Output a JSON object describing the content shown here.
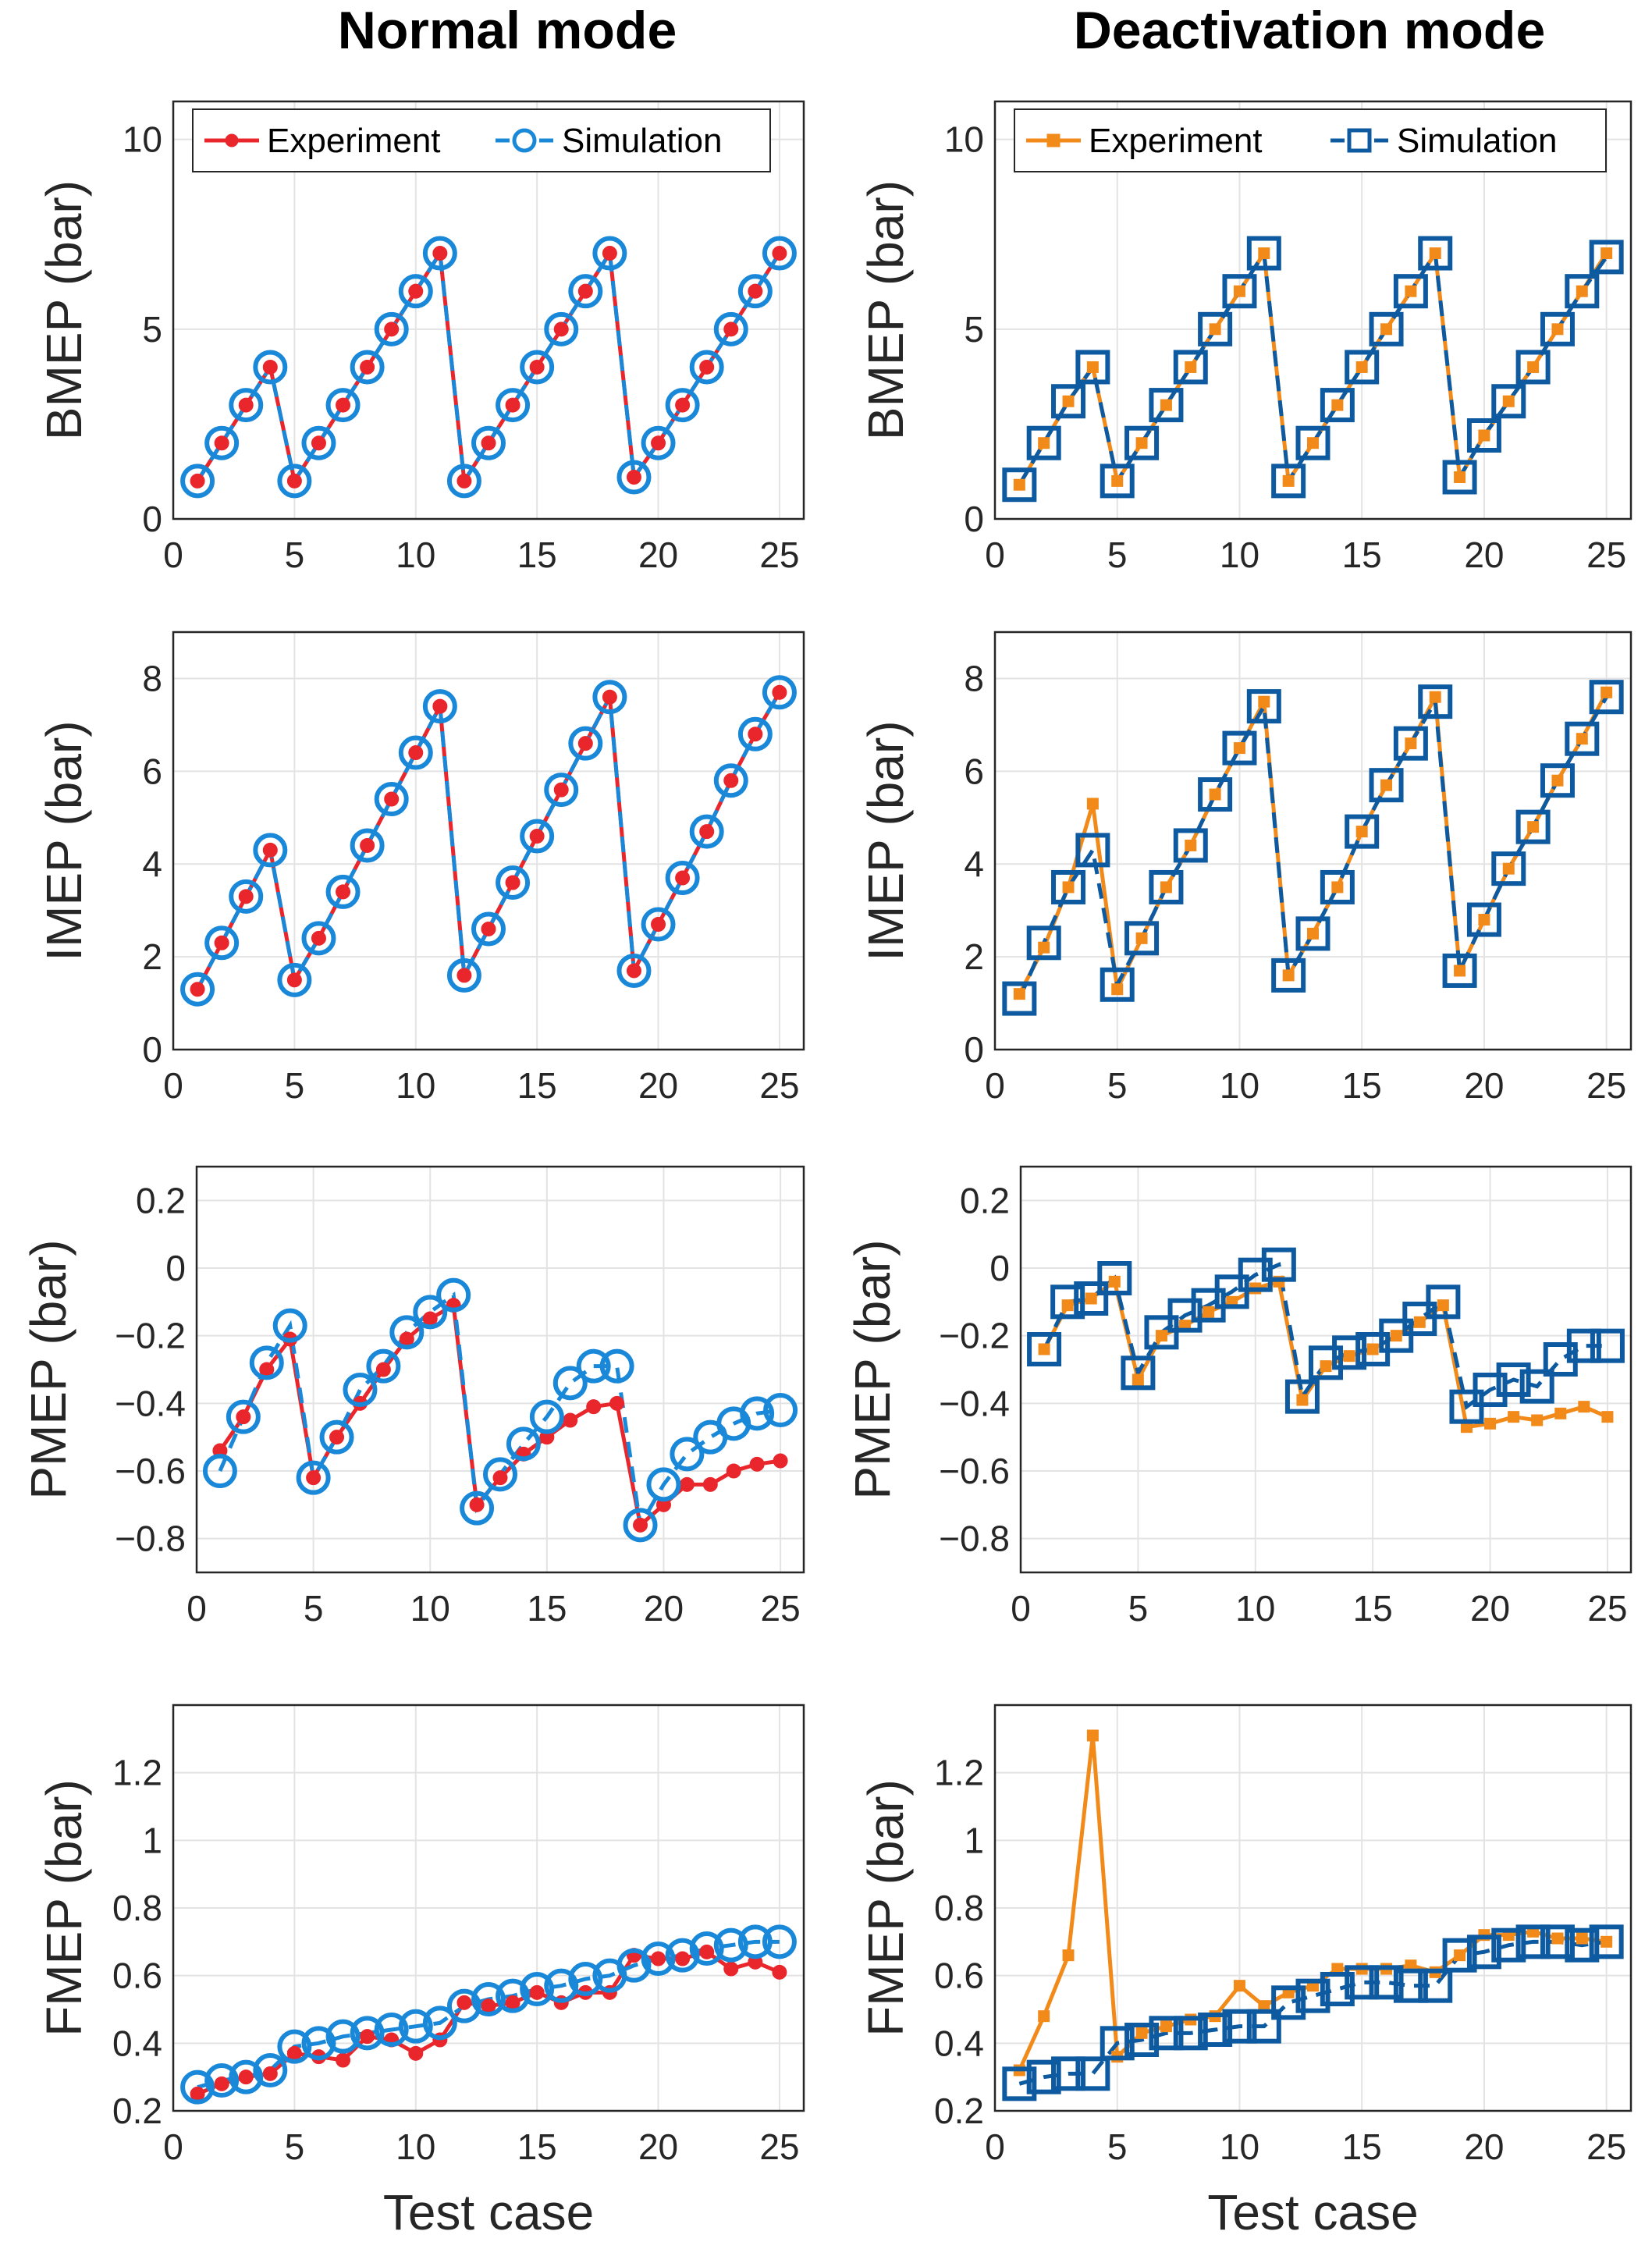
{
  "titles": {
    "left": "Normal mode",
    "right": "Deactivation mode"
  },
  "colors": {
    "exp_normal": "#e8262b",
    "exp_deact": "#f28a1a",
    "sim_normal": "#1a88d8",
    "sim_deact": "#0d5aa0",
    "grid": "#e3e3e3",
    "axis": "#262626"
  },
  "legend": {
    "experiment": "Experiment",
    "simulation": "Simulation"
  },
  "chart_data": [
    {
      "type": "line",
      "panel": "normal-bmep",
      "title": "Normal mode",
      "xlabel": "",
      "ylabel": "BMEP (bar)",
      "xlim": [
        0,
        26
      ],
      "ylim": [
        0,
        11
      ],
      "xticks": [
        0,
        5,
        10,
        15,
        20,
        25
      ],
      "yticks": [
        0,
        5,
        10
      ],
      "ytick_labels": [
        "0",
        "5",
        "10"
      ],
      "legend": true,
      "marker": "circle",
      "x": [
        1,
        2,
        3,
        4,
        5,
        6,
        7,
        8,
        9,
        10,
        11,
        12,
        13,
        14,
        15,
        16,
        17,
        18,
        19,
        20,
        21,
        22,
        23,
        24,
        25
      ],
      "series": [
        {
          "name": "Experiment",
          "values": [
            1,
            2,
            3,
            4,
            1,
            2,
            3,
            4,
            5,
            6,
            7,
            1,
            2,
            3,
            4,
            5,
            6,
            7,
            1.1,
            2,
            3,
            4,
            5,
            6,
            7
          ]
        },
        {
          "name": "Simulation",
          "values": [
            1,
            2,
            3,
            4,
            1,
            2,
            3,
            4,
            5,
            6,
            7,
            1,
            2,
            3,
            4,
            5,
            6,
            7,
            1.1,
            2,
            3,
            4,
            5,
            6,
            7
          ]
        }
      ]
    },
    {
      "type": "line",
      "panel": "deact-bmep",
      "title": "Deactivation mode",
      "xlabel": "",
      "ylabel": "BMEP (bar)",
      "xlim": [
        0,
        26
      ],
      "ylim": [
        0,
        11
      ],
      "xticks": [
        0,
        5,
        10,
        15,
        20,
        25
      ],
      "yticks": [
        0,
        5,
        10
      ],
      "ytick_labels": [
        "0",
        "5",
        "10"
      ],
      "legend": true,
      "marker": "square",
      "x": [
        1,
        2,
        3,
        4,
        5,
        6,
        7,
        8,
        9,
        10,
        11,
        12,
        13,
        14,
        15,
        16,
        17,
        18,
        19,
        20,
        21,
        22,
        23,
        24,
        25
      ],
      "series": [
        {
          "name": "Experiment",
          "values": [
            0.9,
            2,
            3.1,
            4,
            1,
            2,
            3,
            4,
            5,
            6,
            7,
            1,
            2,
            3,
            4,
            5,
            6,
            7,
            1.1,
            2.2,
            3.1,
            4,
            5,
            6,
            7
          ]
        },
        {
          "name": "Simulation",
          "values": [
            0.9,
            2,
            3.1,
            4,
            1,
            2,
            3,
            4,
            5,
            6,
            7,
            1,
            2,
            3,
            4,
            5,
            6,
            7,
            1.1,
            2.2,
            3.1,
            4,
            5,
            6,
            6.9
          ]
        }
      ]
    },
    {
      "type": "line",
      "panel": "normal-imep",
      "title": "",
      "xlabel": "",
      "ylabel": "IMEP (bar)",
      "xlim": [
        0,
        26
      ],
      "ylim": [
        0,
        9
      ],
      "xticks": [
        0,
        5,
        10,
        15,
        20,
        25
      ],
      "yticks": [
        0,
        2,
        4,
        6,
        8
      ],
      "ytick_labels": [
        "0",
        "2",
        "4",
        "6",
        "8"
      ],
      "legend": false,
      "marker": "circle",
      "x": [
        1,
        2,
        3,
        4,
        5,
        6,
        7,
        8,
        9,
        10,
        11,
        12,
        13,
        14,
        15,
        16,
        17,
        18,
        19,
        20,
        21,
        22,
        23,
        24,
        25
      ],
      "series": [
        {
          "name": "Experiment",
          "values": [
            1.3,
            2.3,
            3.3,
            4.3,
            1.5,
            2.4,
            3.4,
            4.4,
            5.4,
            6.4,
            7.4,
            1.6,
            2.6,
            3.6,
            4.6,
            5.6,
            6.6,
            7.6,
            1.7,
            2.7,
            3.7,
            4.7,
            5.8,
            6.8,
            7.7
          ]
        },
        {
          "name": "Simulation",
          "values": [
            1.3,
            2.3,
            3.3,
            4.3,
            1.5,
            2.4,
            3.4,
            4.4,
            5.4,
            6.4,
            7.4,
            1.6,
            2.6,
            3.6,
            4.6,
            5.6,
            6.6,
            7.6,
            1.7,
            2.7,
            3.7,
            4.7,
            5.8,
            6.8,
            7.7
          ]
        }
      ]
    },
    {
      "type": "line",
      "panel": "deact-imep",
      "title": "",
      "xlabel": "",
      "ylabel": "IMEP (bar)",
      "xlim": [
        0,
        26
      ],
      "ylim": [
        0,
        9
      ],
      "xticks": [
        0,
        5,
        10,
        15,
        20,
        25
      ],
      "yticks": [
        0,
        2,
        4,
        6,
        8
      ],
      "ytick_labels": [
        "0",
        "2",
        "4",
        "6",
        "8"
      ],
      "legend": false,
      "marker": "square",
      "x": [
        1,
        2,
        3,
        4,
        5,
        6,
        7,
        8,
        9,
        10,
        11,
        12,
        13,
        14,
        15,
        16,
        17,
        18,
        19,
        20,
        21,
        22,
        23,
        24,
        25
      ],
      "series": [
        {
          "name": "Experiment",
          "values": [
            1.2,
            2.2,
            3.5,
            5.3,
            1.3,
            2.4,
            3.5,
            4.4,
            5.5,
            6.5,
            7.5,
            1.6,
            2.5,
            3.5,
            4.7,
            5.7,
            6.6,
            7.6,
            1.7,
            2.8,
            3.9,
            4.8,
            5.8,
            6.7,
            7.7
          ]
        },
        {
          "name": "Simulation",
          "values": [
            1.1,
            2.3,
            3.5,
            4.3,
            1.4,
            2.4,
            3.5,
            4.4,
            5.5,
            6.5,
            7.4,
            1.6,
            2.5,
            3.5,
            4.7,
            5.7,
            6.6,
            7.5,
            1.7,
            2.8,
            3.9,
            4.8,
            5.8,
            6.7,
            7.6
          ]
        }
      ]
    },
    {
      "type": "line",
      "panel": "normal-pmep",
      "title": "",
      "xlabel": "",
      "ylabel": "PMEP (bar)",
      "xlim": [
        0,
        26
      ],
      "ylim": [
        -0.9,
        0.3
      ],
      "xticks": [
        0,
        5,
        10,
        15,
        20,
        25
      ],
      "yticks": [
        -0.8,
        -0.6,
        -0.4,
        -0.2,
        0,
        0.2
      ],
      "ytick_labels": [
        "−0.8",
        "−0.6",
        "−0.4",
        "−0.2",
        "0",
        "0.2"
      ],
      "legend": false,
      "marker": "circle",
      "x": [
        1,
        2,
        3,
        4,
        5,
        6,
        7,
        8,
        9,
        10,
        11,
        12,
        13,
        14,
        15,
        16,
        17,
        18,
        19,
        20,
        21,
        22,
        23,
        24,
        25
      ],
      "series": [
        {
          "name": "Experiment",
          "values": [
            -0.54,
            -0.44,
            -0.3,
            -0.21,
            -0.62,
            -0.5,
            -0.4,
            -0.3,
            -0.21,
            -0.15,
            -0.11,
            -0.7,
            -0.62,
            -0.55,
            -0.5,
            -0.45,
            -0.41,
            -0.4,
            -0.76,
            -0.7,
            -0.64,
            -0.64,
            -0.6,
            -0.58,
            -0.57
          ]
        },
        {
          "name": "Simulation",
          "values": [
            -0.6,
            -0.44,
            -0.28,
            -0.17,
            -0.62,
            -0.5,
            -0.36,
            -0.29,
            -0.19,
            -0.13,
            -0.08,
            -0.71,
            -0.61,
            -0.52,
            -0.44,
            -0.34,
            -0.29,
            -0.29,
            -0.76,
            -0.64,
            -0.55,
            -0.5,
            -0.46,
            -0.43,
            -0.42
          ]
        }
      ]
    },
    {
      "type": "line",
      "panel": "deact-pmep",
      "title": "",
      "xlabel": "",
      "ylabel": "PMEP (bar)",
      "xlim": [
        0,
        26
      ],
      "ylim": [
        -0.9,
        0.3
      ],
      "xticks": [
        0,
        5,
        10,
        15,
        20,
        25
      ],
      "yticks": [
        -0.8,
        -0.6,
        -0.4,
        -0.2,
        0,
        0.2
      ],
      "ytick_labels": [
        "−0.8",
        "−0.6",
        "−0.4",
        "−0.2",
        "0",
        "0.2"
      ],
      "legend": false,
      "marker": "square",
      "x": [
        1,
        2,
        3,
        4,
        5,
        6,
        7,
        8,
        9,
        10,
        11,
        12,
        13,
        14,
        15,
        16,
        17,
        18,
        19,
        20,
        21,
        22,
        23,
        24,
        25
      ],
      "series": [
        {
          "name": "Experiment",
          "values": [
            -0.24,
            -0.11,
            -0.09,
            -0.04,
            -0.33,
            -0.2,
            -0.17,
            -0.13,
            -0.1,
            -0.06,
            -0.04,
            -0.39,
            -0.29,
            -0.26,
            -0.24,
            -0.2,
            -0.16,
            -0.11,
            -0.47,
            -0.46,
            -0.44,
            -0.45,
            -0.43,
            -0.41,
            -0.44
          ]
        },
        {
          "name": "Simulation",
          "values": [
            -0.24,
            -0.1,
            -0.09,
            -0.03,
            -0.31,
            -0.19,
            -0.14,
            -0.11,
            -0.07,
            -0.02,
            0.01,
            -0.38,
            -0.28,
            -0.25,
            -0.24,
            -0.2,
            -0.15,
            -0.1,
            -0.41,
            -0.36,
            -0.33,
            -0.35,
            -0.27,
            -0.23,
            -0.23
          ]
        }
      ]
    },
    {
      "type": "line",
      "panel": "normal-fmep",
      "title": "",
      "xlabel": "Test case",
      "ylabel": "FMEP (bar)",
      "xlim": [
        0,
        26
      ],
      "ylim": [
        0.2,
        1.4
      ],
      "xticks": [
        0,
        5,
        10,
        15,
        20,
        25
      ],
      "yticks": [
        0.2,
        0.4,
        0.6,
        0.8,
        1,
        1.2
      ],
      "ytick_labels": [
        "0.2",
        "0.4",
        "0.6",
        "0.8",
        "1",
        "1.2"
      ],
      "legend": false,
      "marker": "circle",
      "x": [
        1,
        2,
        3,
        4,
        5,
        6,
        7,
        8,
        9,
        10,
        11,
        12,
        13,
        14,
        15,
        16,
        17,
        18,
        19,
        20,
        21,
        22,
        23,
        24,
        25
      ],
      "series": [
        {
          "name": "Experiment",
          "values": [
            0.25,
            0.28,
            0.3,
            0.31,
            0.37,
            0.36,
            0.35,
            0.42,
            0.41,
            0.37,
            0.41,
            0.52,
            0.51,
            0.52,
            0.55,
            0.52,
            0.55,
            0.55,
            0.66,
            0.65,
            0.65,
            0.67,
            0.62,
            0.64,
            0.61
          ]
        },
        {
          "name": "Simulation",
          "values": [
            0.27,
            0.29,
            0.3,
            0.32,
            0.39,
            0.4,
            0.42,
            0.43,
            0.44,
            0.45,
            0.46,
            0.51,
            0.53,
            0.54,
            0.56,
            0.57,
            0.59,
            0.6,
            0.63,
            0.65,
            0.66,
            0.68,
            0.69,
            0.7,
            0.7
          ]
        }
      ]
    },
    {
      "type": "line",
      "panel": "deact-fmep",
      "title": "",
      "xlabel": "Test case",
      "ylabel": "FMEP (bar)",
      "xlim": [
        0,
        26
      ],
      "ylim": [
        0.2,
        1.4
      ],
      "xticks": [
        0,
        5,
        10,
        15,
        20,
        25
      ],
      "yticks": [
        0.2,
        0.4,
        0.6,
        0.8,
        1,
        1.2
      ],
      "ytick_labels": [
        "0.2",
        "0.4",
        "0.6",
        "0.8",
        "1",
        "1.2"
      ],
      "legend": false,
      "marker": "square",
      "x": [
        1,
        2,
        3,
        4,
        5,
        6,
        7,
        8,
        9,
        10,
        11,
        12,
        13,
        14,
        15,
        16,
        17,
        18,
        19,
        20,
        21,
        22,
        23,
        24,
        25
      ],
      "series": [
        {
          "name": "Experiment",
          "values": [
            0.32,
            0.48,
            0.66,
            1.31,
            0.36,
            0.43,
            0.45,
            0.47,
            0.48,
            0.57,
            0.51,
            0.55,
            0.57,
            0.62,
            0.62,
            0.62,
            0.63,
            0.61,
            0.66,
            0.72,
            0.72,
            0.73,
            0.71,
            0.71,
            0.7
          ]
        },
        {
          "name": "Simulation",
          "values": [
            0.28,
            0.3,
            0.31,
            0.31,
            0.4,
            0.41,
            0.43,
            0.43,
            0.44,
            0.45,
            0.45,
            0.52,
            0.54,
            0.56,
            0.58,
            0.58,
            0.57,
            0.57,
            0.66,
            0.67,
            0.69,
            0.7,
            0.7,
            0.69,
            0.7
          ]
        }
      ]
    }
  ]
}
